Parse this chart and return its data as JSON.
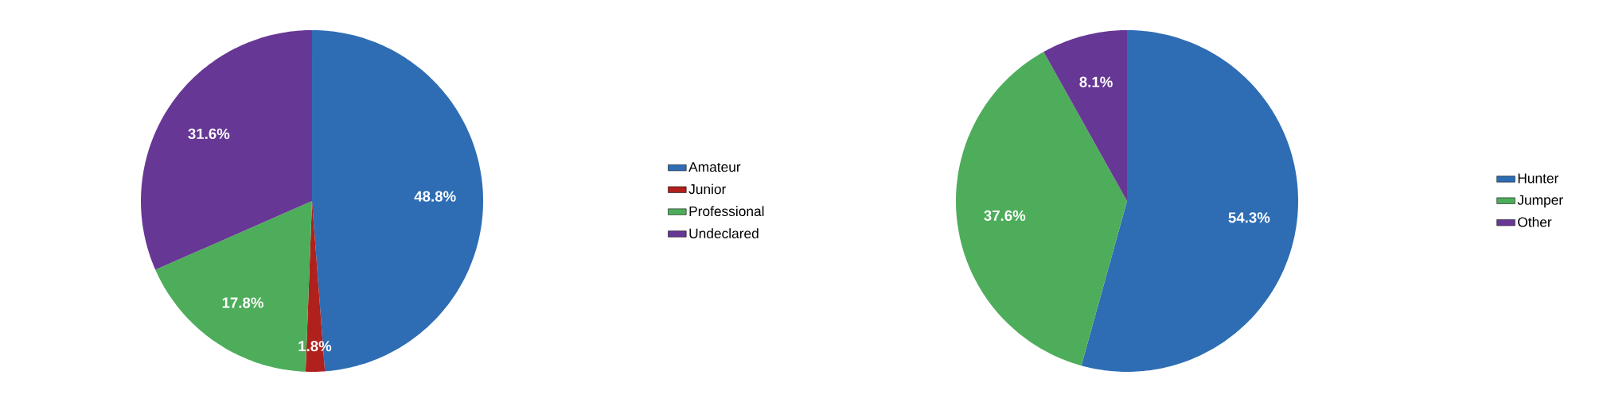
{
  "chart_data": [
    {
      "type": "pie",
      "categories": [
        "Amateur",
        "Junior",
        "Professional",
        "Undeclared"
      ],
      "values": [
        48.8,
        1.8,
        17.8,
        31.6
      ],
      "value_labels": [
        "48.8%",
        "1.8%",
        "17.8%",
        "31.6%"
      ],
      "colors": [
        "#2e6db4",
        "#b0201c",
        "#4ead5b",
        "#673795"
      ],
      "legend": "right"
    },
    {
      "type": "pie",
      "categories": [
        "Hunter",
        "Jumper",
        "Other"
      ],
      "values": [
        54.3,
        37.6,
        8.1
      ],
      "value_labels": [
        "54.3%",
        "37.6%",
        "8.1%"
      ],
      "colors": [
        "#2e6db4",
        "#4ead5b",
        "#673795"
      ],
      "legend": "right"
    }
  ]
}
